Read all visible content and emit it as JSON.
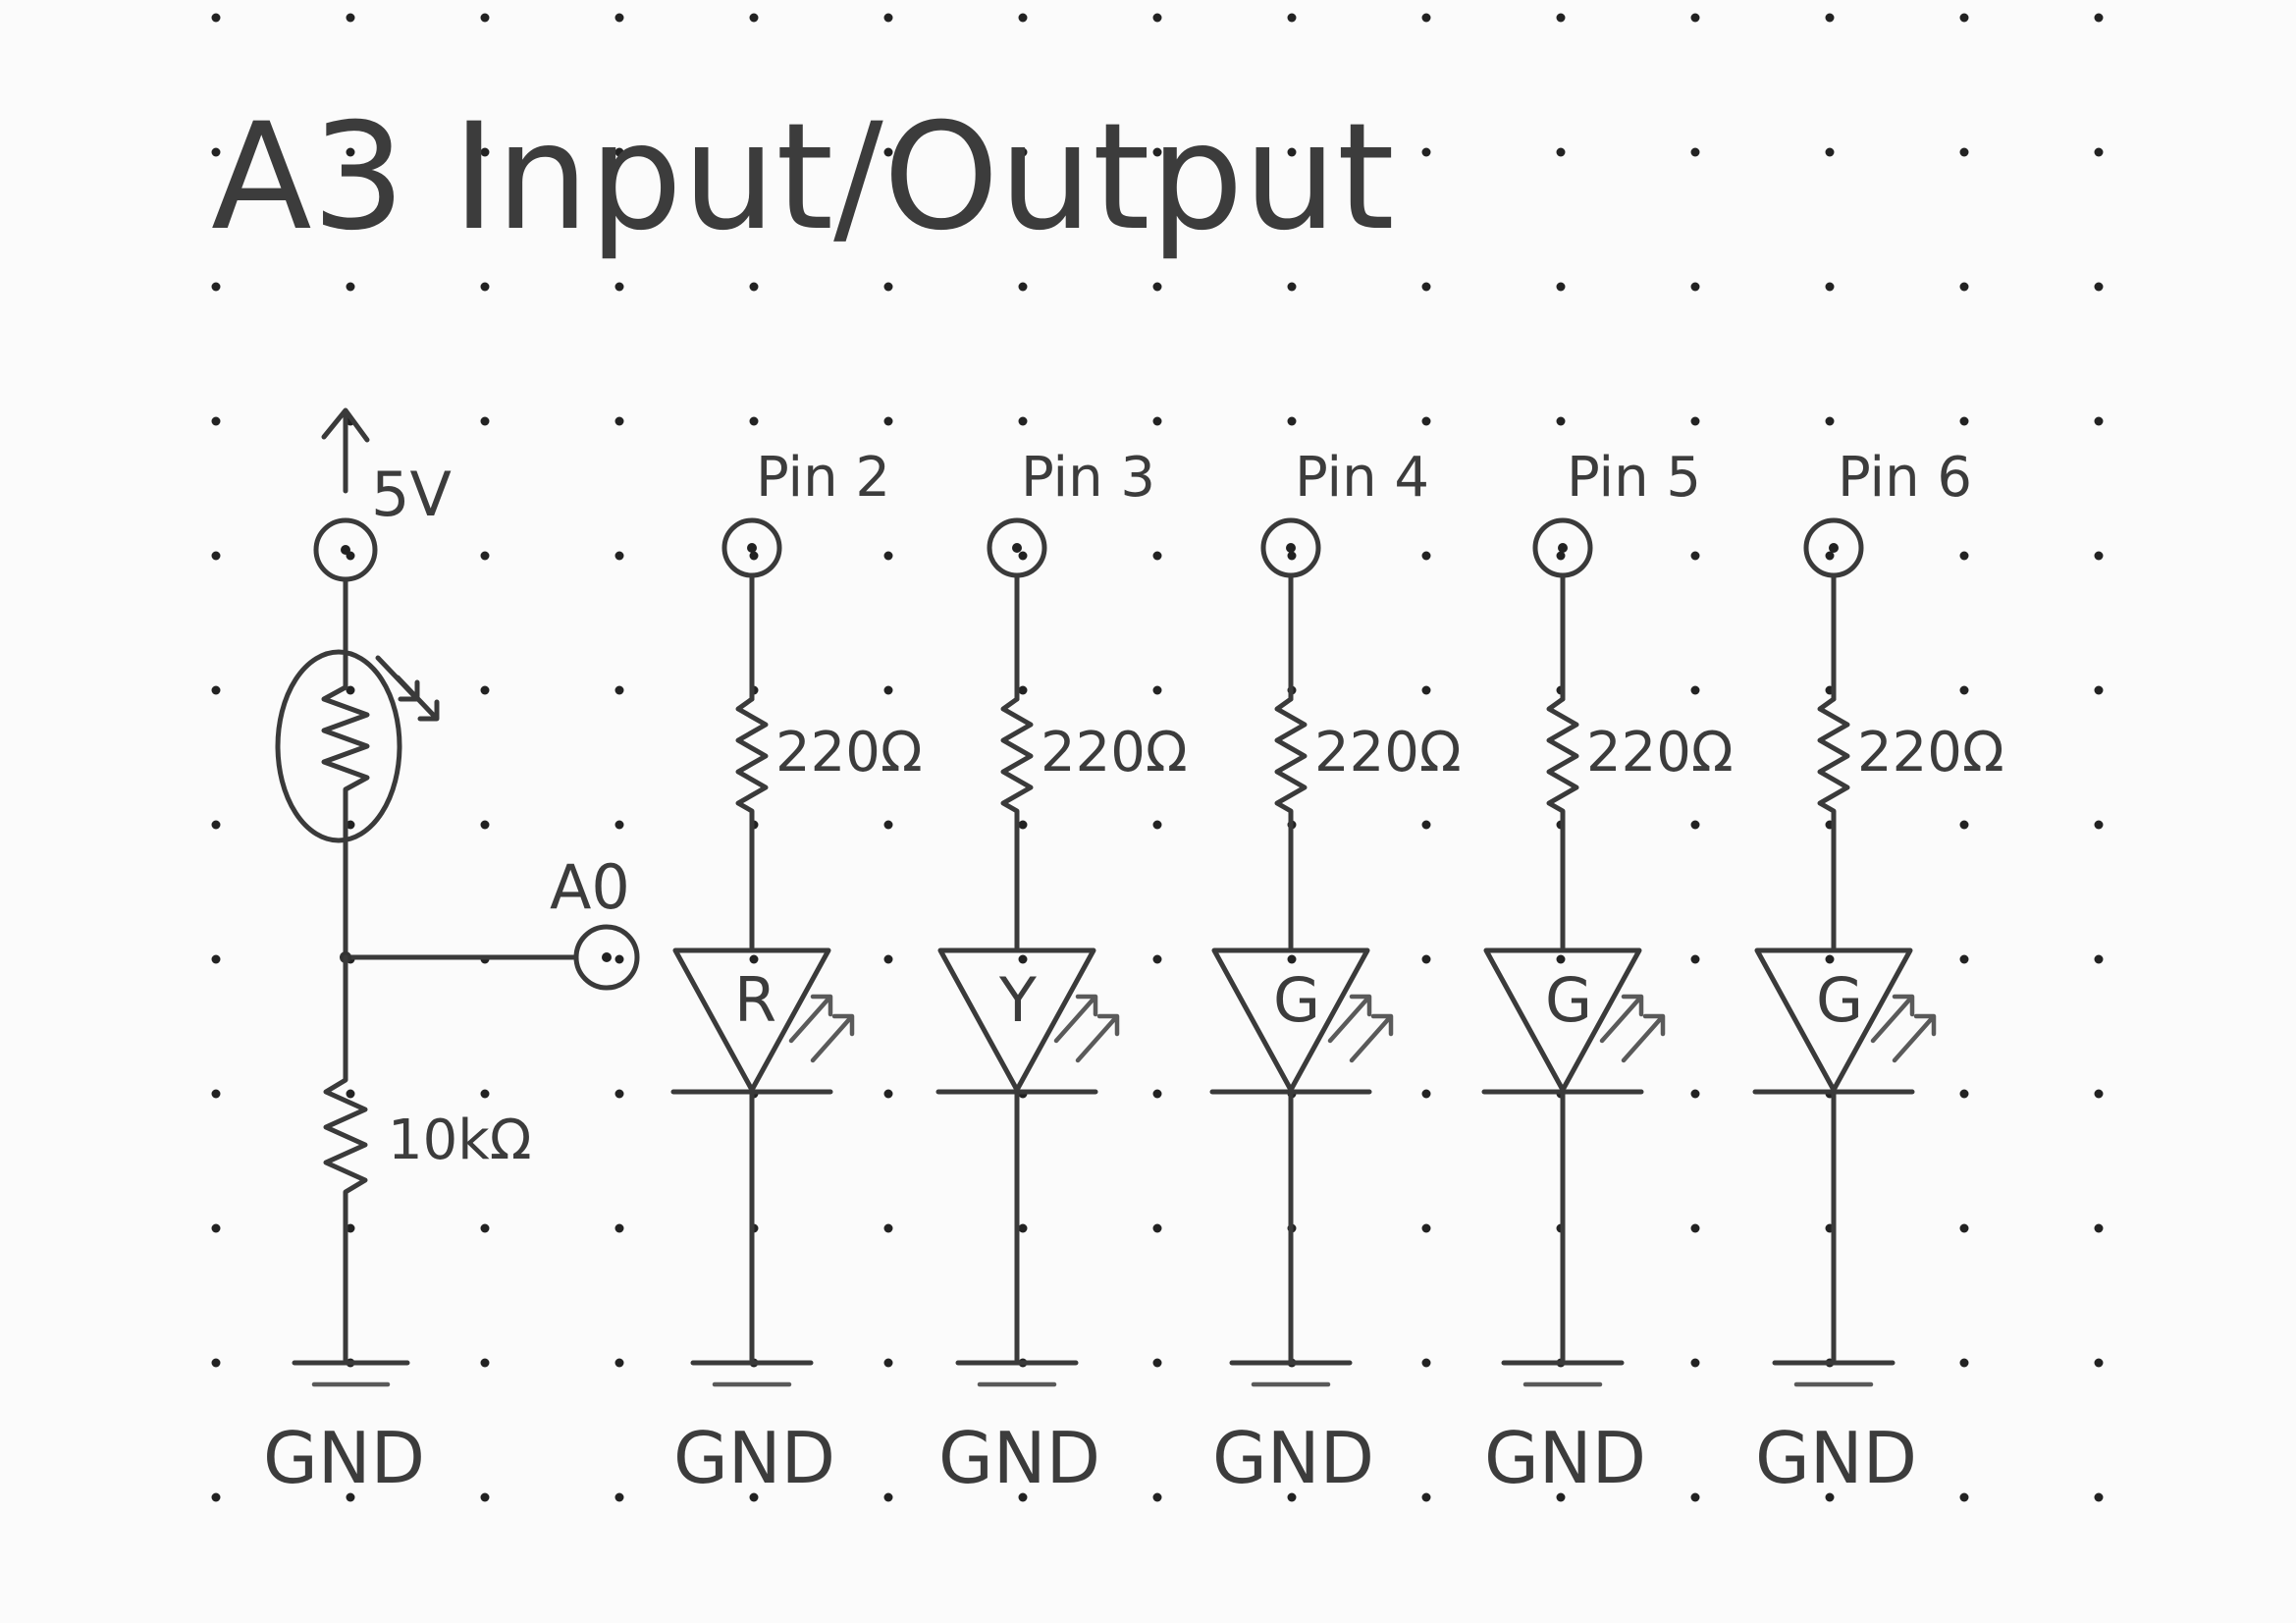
{
  "title": "A3 Input/Output",
  "sensor": {
    "supply_label": "5V",
    "divider_resistor_label": "10kΩ",
    "analog_pin_label": "A0",
    "ground_label": "GND"
  },
  "led_channels": [
    {
      "pin_label": "Pin 2",
      "resistor_label": "220Ω",
      "led_label": "R",
      "ground_label": "GND"
    },
    {
      "pin_label": "Pin 3",
      "resistor_label": "220Ω",
      "led_label": "Y",
      "ground_label": "GND"
    },
    {
      "pin_label": "Pin 4",
      "resistor_label": "220Ω",
      "led_label": "G",
      "ground_label": "GND"
    },
    {
      "pin_label": "Pin 5",
      "resistor_label": "220Ω",
      "led_label": "G",
      "ground_label": "GND"
    },
    {
      "pin_label": "Pin 6",
      "resistor_label": "220Ω",
      "led_label": "G",
      "ground_label": "GND"
    }
  ],
  "colors": {
    "ink": "#3a3a3a",
    "paper": "#fbfbfb",
    "dots": "#222222"
  }
}
